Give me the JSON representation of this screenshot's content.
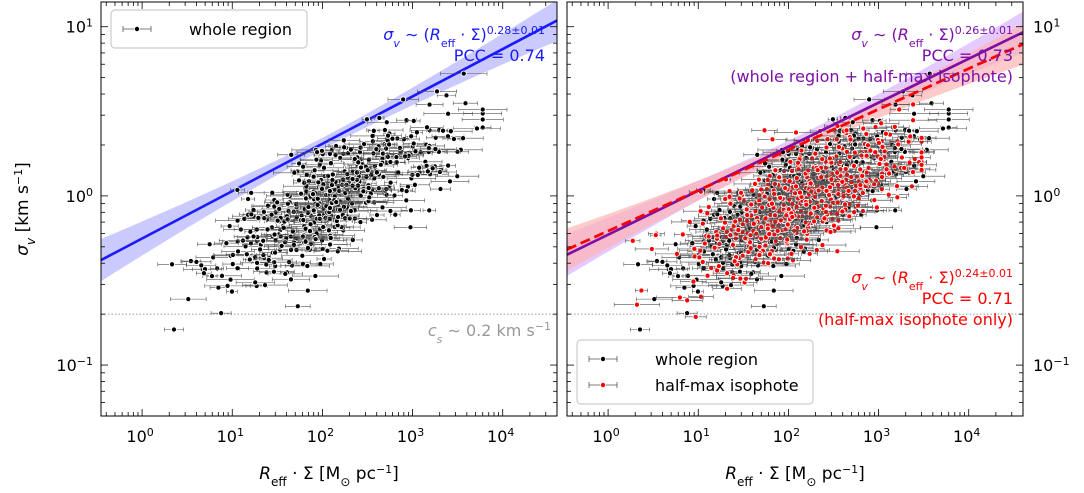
{
  "chart_data": [
    {
      "panel": "left",
      "type": "scatter",
      "xscale": "log",
      "yscale": "log",
      "xlim": [
        0.35,
        40000
      ],
      "ylim": [
        0.05,
        14
      ],
      "xticks": [
        {
          "v": 1,
          "m": "0"
        },
        {
          "v": 10,
          "m": "1"
        },
        {
          "v": 100,
          "m": "2"
        },
        {
          "v": 1000,
          "m": "3"
        },
        {
          "v": 10000,
          "m": "4"
        }
      ],
      "yticks": [
        {
          "v": 0.1,
          "m": "−1"
        },
        {
          "v": 1,
          "m": "0"
        },
        {
          "v": 10,
          "m": "1"
        }
      ],
      "xlabel": {
        "main": "R",
        "sub": "eff",
        "rest": " · Σ [M",
        "odot": "⊙",
        "rest2": " pc",
        "sup": "−1",
        "end": "]"
      },
      "ylabel": {
        "main": "σ",
        "sub": "v",
        "rest": " [km s",
        "sup": "−1",
        "end": "]"
      },
      "fit": {
        "color": "#1a1aff",
        "slope": 0.28,
        "intercept": 0.56,
        "band_color": "#b3b3ff",
        "dashed": false
      },
      "annotation": {
        "lines": [
          "σ_v ∼ (R_eff · Σ)^0.28±0.01",
          "PCC = 0.74"
        ],
        "color": "#1a1aff"
      },
      "legend": {
        "position": "top-left",
        "entries": [
          {
            "label": "whole region",
            "marker": "black"
          }
        ]
      },
      "hline": {
        "y": 0.2,
        "label": "c_s ∼ 0.2 km s⁻¹",
        "color": "#999999"
      },
      "series": [
        {
          "name": "whole region",
          "n_points": 520,
          "color": "#000000",
          "x_range": [
            2,
            6000
          ],
          "trend_slope": 0.28
        }
      ]
    },
    {
      "panel": "right",
      "type": "scatter",
      "xscale": "log",
      "yscale": "log",
      "xlim": [
        0.35,
        40000
      ],
      "ylim": [
        0.05,
        14
      ],
      "xticks": [
        {
          "v": 1,
          "m": "0"
        },
        {
          "v": 10,
          "m": "1"
        },
        {
          "v": 100,
          "m": "2"
        },
        {
          "v": 1000,
          "m": "3"
        },
        {
          "v": 10000,
          "m": "4"
        }
      ],
      "yticks": [
        {
          "v": 0.1,
          "m": "−1"
        },
        {
          "v": 1,
          "m": "0"
        },
        {
          "v": 10,
          "m": "1"
        }
      ],
      "fits": [
        {
          "color": "#7d0fa8",
          "slope": 0.26,
          "intercept": 0.59,
          "band_color": "#d9b3ff",
          "dashed": false
        },
        {
          "color": "#ff0000",
          "slope": 0.24,
          "intercept": 0.62,
          "band_color": "#ffb3b3",
          "dashed": true
        }
      ],
      "annotations": [
        {
          "lines": [
            "σ_v ∼ (R_eff · Σ)^0.26±0.01",
            "PCC = 0.73",
            "(whole region + half-max isophote)"
          ],
          "color": "#7d0fa8",
          "pos": "top"
        },
        {
          "lines": [
            "σ_v ∼ (R_eff · Σ)^0.24±0.01",
            "PCC = 0.71",
            "(half-max isophote only)"
          ],
          "color": "#ff0000",
          "pos": "bottom"
        }
      ],
      "legend": {
        "position": "bottom-left",
        "entries": [
          {
            "label": "whole region",
            "marker": "black"
          },
          {
            "label": "half-max isophote",
            "marker": "red"
          }
        ]
      },
      "hline": {
        "y": 0.2,
        "color": "#999999"
      },
      "series": [
        {
          "name": "whole region",
          "n_points": 520,
          "color": "#000000",
          "x_range": [
            2,
            6000
          ],
          "trend_slope": 0.28
        },
        {
          "name": "half-max isophote",
          "n_points": 560,
          "color": "#ff0000",
          "x_range": [
            1,
            3000
          ],
          "trend_slope": 0.24
        }
      ]
    }
  ]
}
